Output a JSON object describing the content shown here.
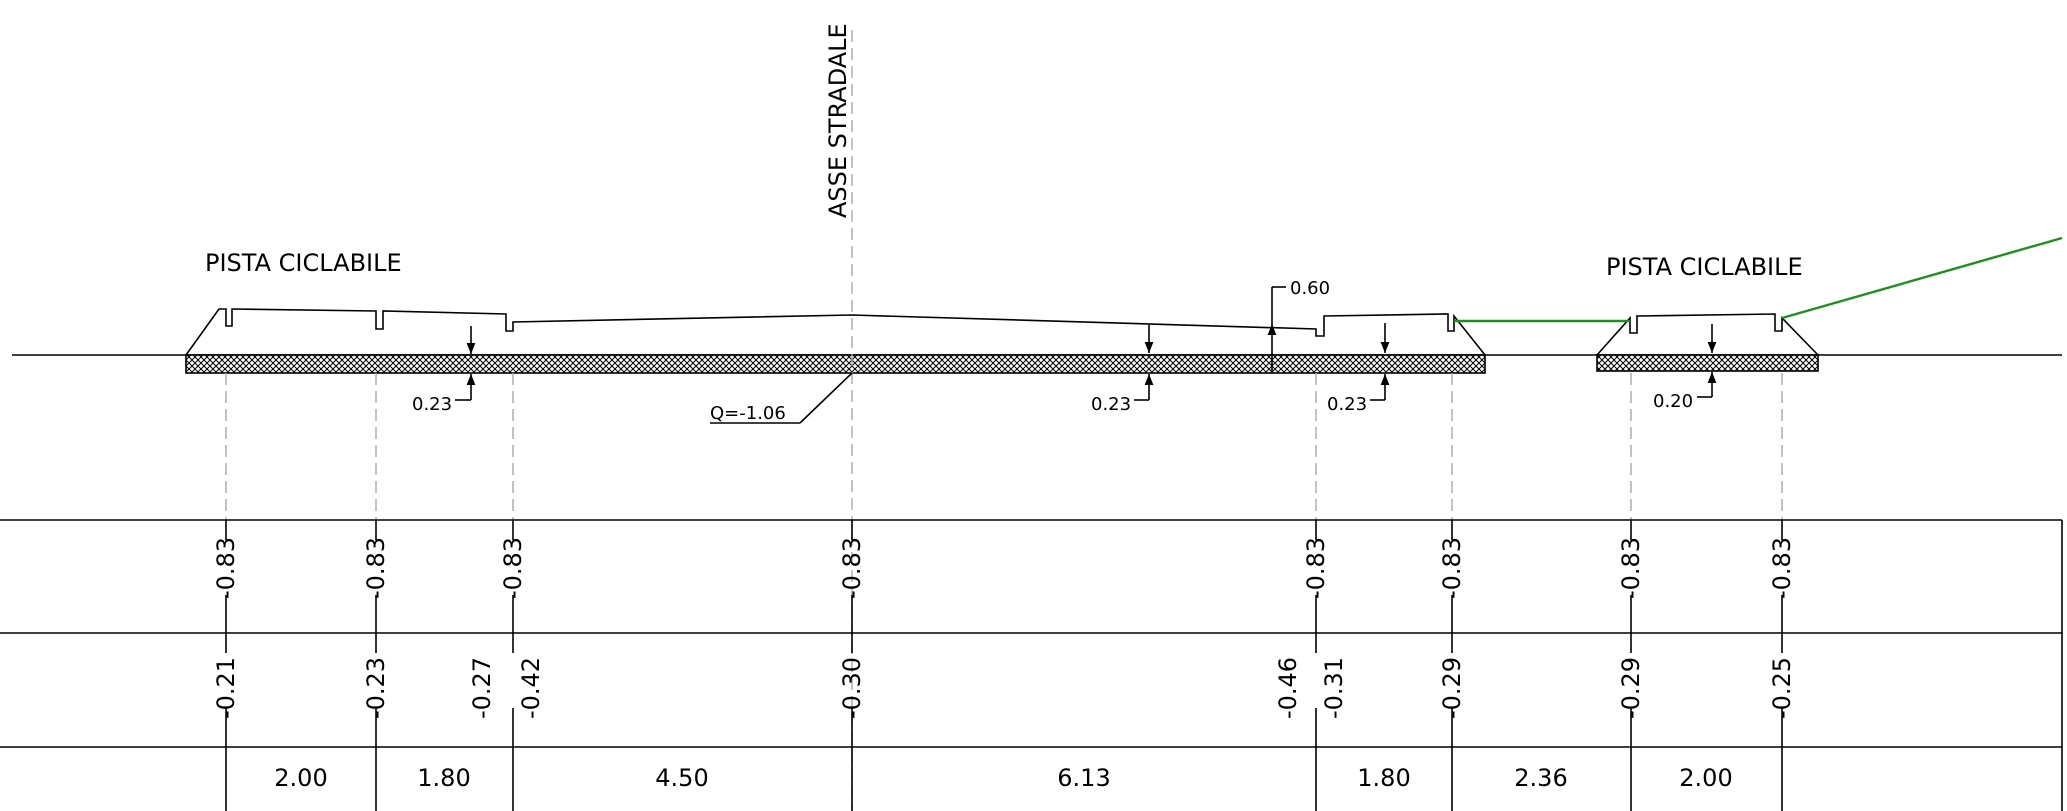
{
  "labels": {
    "axis": "ASSE STRADALE",
    "bike_left": "PISTA CICLABILE",
    "bike_right": "PISTA CICLABILE",
    "q_level": "Q=-1.06"
  },
  "dims": {
    "t1": "0.23",
    "t2": "0.23",
    "t3": "0.23",
    "t4": "0.20",
    "top": "0.60"
  },
  "row1": [
    "-0.83",
    "-0.83",
    "-0.83",
    "-0.83",
    "-0.83",
    "-0.83",
    "-0.83",
    "-0.83"
  ],
  "row2": [
    "-0.21",
    "-0.23",
    "-0.27",
    "-0.42",
    "-0.30",
    "-0.46",
    "-0.31",
    "-0.29",
    "-0.29",
    "-0.25"
  ],
  "row3": [
    "2.00",
    "1.80",
    "4.50",
    "6.13",
    "1.80",
    "2.36",
    "2.00"
  ],
  "colors": {
    "section_line": "#000000",
    "guide": "#a8a8a8",
    "ground": "#1f8f1f"
  }
}
